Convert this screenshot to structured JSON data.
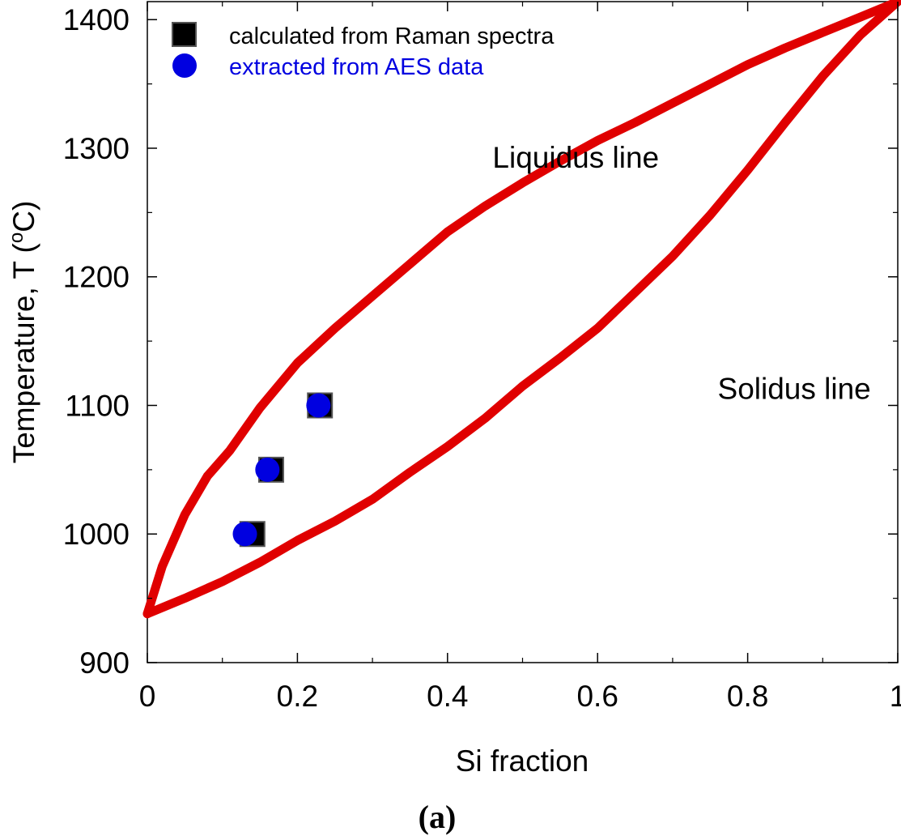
{
  "chart_data": {
    "type": "scatter",
    "xlabel": "Si fraction",
    "ylabel": "Temperature, T (",
    "ylabel_sup": "o",
    "ylabel_unit": "C)",
    "caption_open": "(",
    "caption_letter": "a",
    "caption_close": ")",
    "xlim": [
      0,
      1
    ],
    "ylim": [
      900,
      1414
    ],
    "x_ticks": [
      0,
      0.2,
      0.4,
      0.6,
      0.8,
      1
    ],
    "x_tick_labels": [
      "0",
      "0.2",
      "0.4",
      "0.6",
      "0.8",
      "1"
    ],
    "y_ticks": [
      900,
      1000,
      1100,
      1200,
      1300,
      1400
    ],
    "y_tick_labels": [
      "900",
      "1000",
      "1100",
      "1200",
      "1300",
      "1400"
    ],
    "grid": false,
    "legend_position": "top-left",
    "colors": {
      "curve": "#e00000",
      "raman": "#000000",
      "aes": "#0000e0"
    },
    "annotations": [
      {
        "text": "Liquidus line",
        "x": 0.46,
        "y": 1285
      },
      {
        "text": "Solidus line",
        "x": 0.76,
        "y": 1105
      }
    ],
    "curves": [
      {
        "label": "liquidus",
        "x": [
          0,
          0.02,
          0.05,
          0.08,
          0.11,
          0.15,
          0.2,
          0.25,
          0.3,
          0.35,
          0.4,
          0.45,
          0.5,
          0.55,
          0.6,
          0.65,
          0.7,
          0.75,
          0.8,
          0.85,
          0.9,
          0.95,
          1
        ],
        "y": [
          938,
          975,
          1015,
          1045,
          1065,
          1098,
          1133,
          1160,
          1185,
          1210,
          1235,
          1255,
          1273,
          1290,
          1306,
          1320,
          1335,
          1350,
          1365,
          1378,
          1390,
          1402,
          1414
        ]
      },
      {
        "label": "solidus",
        "x": [
          0,
          0.05,
          0.1,
          0.15,
          0.2,
          0.25,
          0.3,
          0.35,
          0.4,
          0.45,
          0.5,
          0.55,
          0.6,
          0.65,
          0.7,
          0.75,
          0.8,
          0.85,
          0.9,
          0.95,
          1
        ],
        "y": [
          938,
          950,
          963,
          978,
          995,
          1010,
          1027,
          1048,
          1068,
          1090,
          1115,
          1137,
          1160,
          1188,
          1216,
          1248,
          1283,
          1320,
          1356,
          1388,
          1414
        ]
      }
    ],
    "series": [
      {
        "name": "calculated from Raman spectra",
        "marker": "square",
        "x": [
          0.14,
          0.165,
          0.23
        ],
        "y": [
          1000,
          1050,
          1100
        ]
      },
      {
        "name": "extracted from AES data",
        "marker": "circle",
        "x": [
          0.13,
          0.16,
          0.228
        ],
        "y": [
          1000,
          1050,
          1100
        ]
      }
    ]
  }
}
